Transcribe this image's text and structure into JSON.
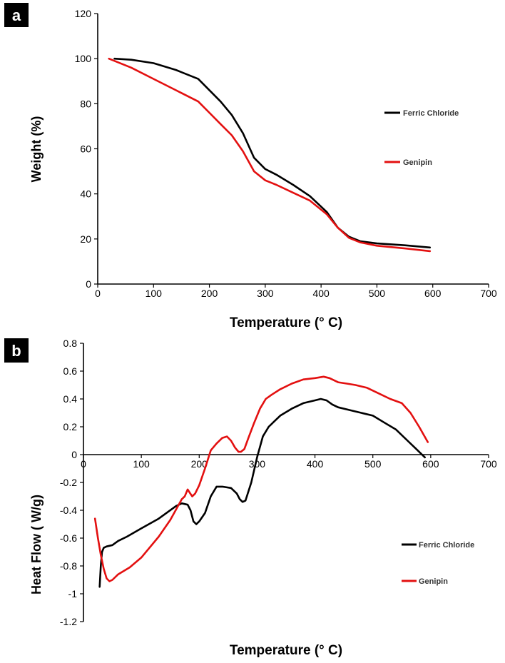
{
  "chart_data": [
    {
      "panel": "a",
      "type": "line",
      "xlabel": "Temperature (° C)",
      "ylabel": "Weight (%)",
      "xlim": [
        0,
        700
      ],
      "ylim": [
        0,
        120
      ],
      "xticks": [
        0,
        100,
        200,
        300,
        400,
        500,
        600,
        700
      ],
      "yticks": [
        0,
        20,
        40,
        60,
        80,
        100,
        120
      ],
      "legend_position": "right",
      "series": [
        {
          "name": "Ferric Chloride",
          "color": "#000000",
          "x": [
            30,
            60,
            100,
            140,
            180,
            200,
            220,
            240,
            260,
            280,
            300,
            320,
            350,
            380,
            410,
            430,
            450,
            470,
            500,
            550,
            595
          ],
          "y": [
            100,
            99.5,
            98,
            95,
            91,
            86,
            81,
            75,
            67,
            56,
            51,
            48.5,
            44,
            39,
            32,
            25,
            21,
            19,
            18,
            17.2,
            16.2
          ]
        },
        {
          "name": "Genipin",
          "color": "#e31010",
          "x": [
            20,
            60,
            100,
            140,
            180,
            200,
            220,
            240,
            260,
            280,
            300,
            320,
            350,
            380,
            410,
            430,
            450,
            470,
            500,
            550,
            595
          ],
          "y": [
            100,
            96,
            91,
            86,
            81,
            76,
            71,
            66,
            59,
            50,
            46,
            44,
            40.5,
            37,
            31,
            25,
            20.5,
            18.5,
            17,
            15.8,
            14.6
          ]
        }
      ]
    },
    {
      "panel": "b",
      "type": "line",
      "xlabel": "Temperature (° C)",
      "ylabel": "Heat Flow ( W/g)",
      "xlim": [
        0,
        700
      ],
      "ylim": [
        -1.2,
        0.8
      ],
      "xticks": [
        0,
        100,
        200,
        300,
        400,
        500,
        600,
        700
      ],
      "yticks": [
        -1.2,
        -1,
        -0.8,
        -0.6,
        -0.4,
        -0.2,
        0,
        0.2,
        0.4,
        0.6,
        0.8
      ],
      "legend_position": "bottom-right",
      "series": [
        {
          "name": "Ferric Chloride",
          "color": "#000000",
          "x": [
            28,
            30,
            32,
            35,
            40,
            50,
            60,
            75,
            100,
            130,
            160,
            170,
            180,
            185,
            190,
            195,
            200,
            210,
            220,
            230,
            240,
            255,
            265,
            270,
            275,
            280,
            290,
            300,
            310,
            320,
            340,
            360,
            380,
            400,
            410,
            420,
            430,
            440,
            460,
            480,
            500,
            520,
            540,
            560,
            575,
            590
          ],
          "y": [
            -0.95,
            -0.8,
            -0.7,
            -0.67,
            -0.66,
            -0.65,
            -0.62,
            -0.59,
            -0.53,
            -0.46,
            -0.37,
            -0.35,
            -0.36,
            -0.4,
            -0.48,
            -0.5,
            -0.48,
            -0.42,
            -0.3,
            -0.23,
            -0.23,
            -0.24,
            -0.28,
            -0.32,
            -0.34,
            -0.33,
            -0.2,
            -0.02,
            0.13,
            0.2,
            0.28,
            0.33,
            0.37,
            0.39,
            0.4,
            0.39,
            0.36,
            0.34,
            0.32,
            0.3,
            0.28,
            0.23,
            0.18,
            0.1,
            0.04,
            -0.02
          ]
        },
        {
          "name": "Genipin",
          "color": "#e31010",
          "x": [
            20,
            25,
            30,
            35,
            40,
            45,
            50,
            60,
            80,
            100,
            130,
            150,
            170,
            175,
            180,
            183,
            188,
            193,
            200,
            210,
            220,
            230,
            240,
            248,
            255,
            262,
            268,
            272,
            278,
            285,
            295,
            305,
            315,
            325,
            340,
            360,
            380,
            400,
            415,
            425,
            440,
            455,
            470,
            490,
            510,
            530,
            550,
            565,
            580,
            595
          ],
          "y": [
            -0.46,
            -0.6,
            -0.72,
            -0.82,
            -0.89,
            -0.91,
            -0.9,
            -0.86,
            -0.81,
            -0.74,
            -0.59,
            -0.47,
            -0.32,
            -0.3,
            -0.25,
            -0.27,
            -0.3,
            -0.28,
            -0.22,
            -0.1,
            0.03,
            0.08,
            0.12,
            0.13,
            0.1,
            0.05,
            0.02,
            0.02,
            0.04,
            0.12,
            0.23,
            0.33,
            0.4,
            0.43,
            0.47,
            0.51,
            0.54,
            0.55,
            0.56,
            0.55,
            0.52,
            0.51,
            0.5,
            0.48,
            0.44,
            0.4,
            0.37,
            0.3,
            0.2,
            0.09
          ]
        }
      ]
    }
  ]
}
